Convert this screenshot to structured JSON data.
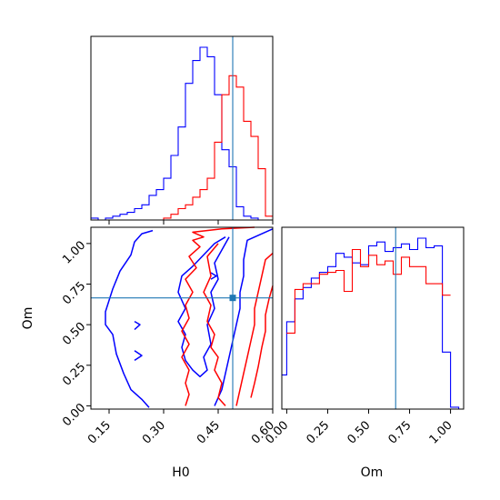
{
  "chart_data": {
    "type": "corner",
    "parameters": [
      "H0",
      "Om"
    ],
    "truth": {
      "H0": 0.49,
      "Om": 0.665
    },
    "colors": {
      "blue": "#0000ff",
      "red": "#ff0000",
      "truth": "#1f77b4"
    },
    "panels": [
      {
        "id": "hist-H0",
        "type": "step-histogram",
        "xlim": [
          0.1,
          0.6
        ],
        "xticks": [
          0.15,
          0.3,
          0.45,
          0.6
        ],
        "xtick_labels_shown": false,
        "yticks_shown": false,
        "series": [
          {
            "color": "blue",
            "edges": [
              0.1,
              0.12,
              0.14,
              0.16,
              0.18,
              0.2,
              0.22,
              0.24,
              0.26,
              0.28,
              0.3,
              0.32,
              0.34,
              0.36,
              0.38,
              0.4,
              0.42,
              0.44,
              0.46,
              0.48,
              0.5,
              0.52,
              0.54,
              0.56,
              0.58,
              0.6
            ],
            "counts": [
              1,
              0,
              1,
              2,
              3,
              4,
              6,
              8,
              13,
              16,
              22,
              34,
              49,
              72,
              84,
              91,
              86,
              66,
              37,
              28,
              7,
              2,
              1,
              0,
              0
            ]
          },
          {
            "color": "red",
            "edges": [
              0.1,
              0.12,
              0.14,
              0.16,
              0.18,
              0.2,
              0.22,
              0.24,
              0.26,
              0.28,
              0.3,
              0.32,
              0.34,
              0.36,
              0.38,
              0.4,
              0.42,
              0.44,
              0.46,
              0.48,
              0.5,
              0.52,
              0.54,
              0.56,
              0.58,
              0.6
            ],
            "counts": [
              0,
              0,
              0,
              0,
              0,
              0,
              0,
              0,
              0,
              0,
              1,
              3,
              6,
              8,
              12,
              16,
              22,
              41,
              66,
              76,
              70,
              52,
              44,
              27,
              2
            ]
          }
        ]
      },
      {
        "id": "contour-H0-Om",
        "type": "contour",
        "xlim": [
          0.1,
          0.6
        ],
        "ylim": [
          -0.02,
          1.1
        ],
        "xticks": [
          0.15,
          0.3,
          0.45,
          0.6
        ],
        "xtick_labels": [
          "0.15",
          "0.30",
          "0.45",
          "0.60"
        ],
        "yticks": [
          0.0,
          0.25,
          0.5,
          0.75,
          1.0
        ],
        "ytick_labels": [
          "0.00",
          "0.25",
          "0.50",
          "0.75",
          "1.00"
        ],
        "xlabel": "H0",
        "ylabel": "Om",
        "series": [
          {
            "color": "blue",
            "contours": [
              [
                [
                  0.27,
                  1.08
                ],
                [
                  0.24,
                  1.06
                ],
                [
                  0.22,
                  1.01
                ],
                [
                  0.21,
                  0.93
                ],
                [
                  0.18,
                  0.83
                ],
                [
                  0.16,
                  0.72
                ],
                [
                  0.14,
                  0.58
                ],
                [
                  0.14,
                  0.5
                ],
                [
                  0.16,
                  0.44
                ],
                [
                  0.17,
                  0.32
                ],
                [
                  0.19,
                  0.2
                ],
                [
                  0.21,
                  0.1
                ],
                [
                  0.24,
                  0.04
                ],
                [
                  0.26,
                  -0.01
                ]
              ],
              [
                [
                  0.22,
                  0.52
                ],
                [
                  0.235,
                  0.5
                ],
                [
                  0.22,
                  0.47
                ]
              ],
              [
                [
                  0.22,
                  0.34
                ],
                [
                  0.24,
                  0.31
                ],
                [
                  0.22,
                  0.28
                ]
              ],
              [
                [
                  0.47,
                  1.04
                ],
                [
                  0.44,
                  1.0
                ],
                [
                  0.41,
                  0.93
                ],
                [
                  0.38,
                  0.86
                ],
                [
                  0.35,
                  0.8
                ],
                [
                  0.34,
                  0.7
                ],
                [
                  0.36,
                  0.6
                ],
                [
                  0.34,
                  0.52
                ],
                [
                  0.36,
                  0.44
                ],
                [
                  0.35,
                  0.36
                ],
                [
                  0.36,
                  0.28
                ],
                [
                  0.38,
                  0.22
                ],
                [
                  0.4,
                  0.18
                ],
                [
                  0.42,
                  0.22
                ],
                [
                  0.41,
                  0.3
                ],
                [
                  0.43,
                  0.38
                ],
                [
                  0.42,
                  0.5
                ],
                [
                  0.44,
                  0.6
                ],
                [
                  0.43,
                  0.7
                ],
                [
                  0.45,
                  0.78
                ],
                [
                  0.44,
                  0.88
                ],
                [
                  0.46,
                  0.96
                ],
                [
                  0.48,
                  1.04
                ]
              ],
              [
                [
                  0.43,
                  0.82
                ],
                [
                  0.445,
                  0.8
                ],
                [
                  0.43,
                  0.78
                ]
              ],
              [
                [
                  0.6,
                  1.09
                ],
                [
                  0.56,
                  1.05
                ],
                [
                  0.53,
                  1.02
                ],
                [
                  0.52,
                  0.9
                ],
                [
                  0.52,
                  0.8
                ],
                [
                  0.51,
                  0.7
                ],
                [
                  0.51,
                  0.6
                ],
                [
                  0.5,
                  0.5
                ],
                [
                  0.49,
                  0.4
                ],
                [
                  0.48,
                  0.3
                ],
                [
                  0.47,
                  0.2
                ],
                [
                  0.46,
                  0.1
                ],
                [
                  0.44,
                  0.0
                ]
              ]
            ]
          },
          {
            "color": "red",
            "contours": [
              [
                [
                  0.55,
                  1.1
                ],
                [
                  0.46,
                  1.09
                ],
                [
                  0.38,
                  1.07
                ],
                [
                  0.41,
                  1.04
                ],
                [
                  0.38,
                  1.02
                ],
                [
                  0.4,
                  0.98
                ],
                [
                  0.37,
                  0.92
                ],
                [
                  0.39,
                  0.85
                ],
                [
                  0.36,
                  0.78
                ],
                [
                  0.38,
                  0.7
                ],
                [
                  0.36,
                  0.62
                ],
                [
                  0.37,
                  0.54
                ],
                [
                  0.35,
                  0.46
                ],
                [
                  0.37,
                  0.38
                ],
                [
                  0.35,
                  0.3
                ],
                [
                  0.37,
                  0.22
                ],
                [
                  0.36,
                  0.14
                ],
                [
                  0.37,
                  0.07
                ],
                [
                  0.36,
                  0.0
                ]
              ],
              [
                [
                  0.45,
                  1.0
                ],
                [
                  0.42,
                  0.92
                ],
                [
                  0.43,
                  0.8
                ],
                [
                  0.41,
                  0.7
                ],
                [
                  0.43,
                  0.62
                ],
                [
                  0.42,
                  0.52
                ],
                [
                  0.44,
                  0.44
                ],
                [
                  0.43,
                  0.36
                ],
                [
                  0.45,
                  0.3
                ],
                [
                  0.44,
                  0.22
                ],
                [
                  0.46,
                  0.14
                ],
                [
                  0.45,
                  0.05
                ],
                [
                  0.47,
                  0.0
                ]
              ],
              [
                [
                  0.6,
                  0.94
                ],
                [
                  0.58,
                  0.9
                ],
                [
                  0.57,
                  0.8
                ],
                [
                  0.56,
                  0.7
                ],
                [
                  0.55,
                  0.6
                ],
                [
                  0.55,
                  0.5
                ],
                [
                  0.54,
                  0.4
                ],
                [
                  0.53,
                  0.3
                ],
                [
                  0.52,
                  0.2
                ],
                [
                  0.51,
                  0.1
                ],
                [
                  0.5,
                  0.0
                ]
              ],
              [
                [
                  0.6,
                  0.74
                ],
                [
                  0.59,
                  0.66
                ],
                [
                  0.58,
                  0.56
                ],
                [
                  0.58,
                  0.46
                ],
                [
                  0.57,
                  0.36
                ],
                [
                  0.56,
                  0.24
                ],
                [
                  0.55,
                  0.14
                ],
                [
                  0.54,
                  0.05
                ]
              ]
            ]
          }
        ],
        "truth_marker": true
      },
      {
        "id": "hist-Om",
        "type": "step-histogram",
        "xlim": [
          -0.03,
          1.08
        ],
        "xticks": [
          0.0,
          0.25,
          0.5,
          0.75,
          1.0
        ],
        "xtick_labels": [
          "0.00",
          "0.25",
          "0.50",
          "0.75",
          "1.00"
        ],
        "xlabel": "Om",
        "yticks_shown": false,
        "series": [
          {
            "color": "blue",
            "edges": [
              -0.03,
              0.0,
              0.05,
              0.1,
              0.15,
              0.2,
              0.25,
              0.3,
              0.35,
              0.4,
              0.45,
              0.5,
              0.55,
              0.6,
              0.65,
              0.7,
              0.75,
              0.8,
              0.85,
              0.9,
              0.95,
              1.0,
              1.05,
              1.08
            ],
            "counts": [
              0.18,
              0.46,
              0.58,
              0.64,
              0.69,
              0.72,
              0.75,
              0.82,
              0.8,
              0.77,
              0.76,
              0.86,
              0.88,
              0.83,
              0.85,
              0.87,
              0.84,
              0.9,
              0.85,
              0.86,
              0.3,
              0.01,
              0
            ]
          },
          {
            "color": "red",
            "edges": [
              0.0,
              0.05,
              0.1,
              0.15,
              0.2,
              0.25,
              0.3,
              0.35,
              0.4,
              0.45,
              0.5,
              0.55,
              0.6,
              0.65,
              0.7,
              0.75,
              0.8,
              0.85,
              0.9,
              0.95,
              1.0
            ],
            "counts": [
              0.4,
              0.63,
              0.66,
              0.66,
              0.71,
              0.72,
              0.73,
              0.62,
              0.84,
              0.75,
              0.81,
              0.76,
              0.78,
              0.71,
              0.8,
              0.75,
              0.75,
              0.66,
              0.66,
              0.6
            ]
          }
        ]
      }
    ]
  }
}
